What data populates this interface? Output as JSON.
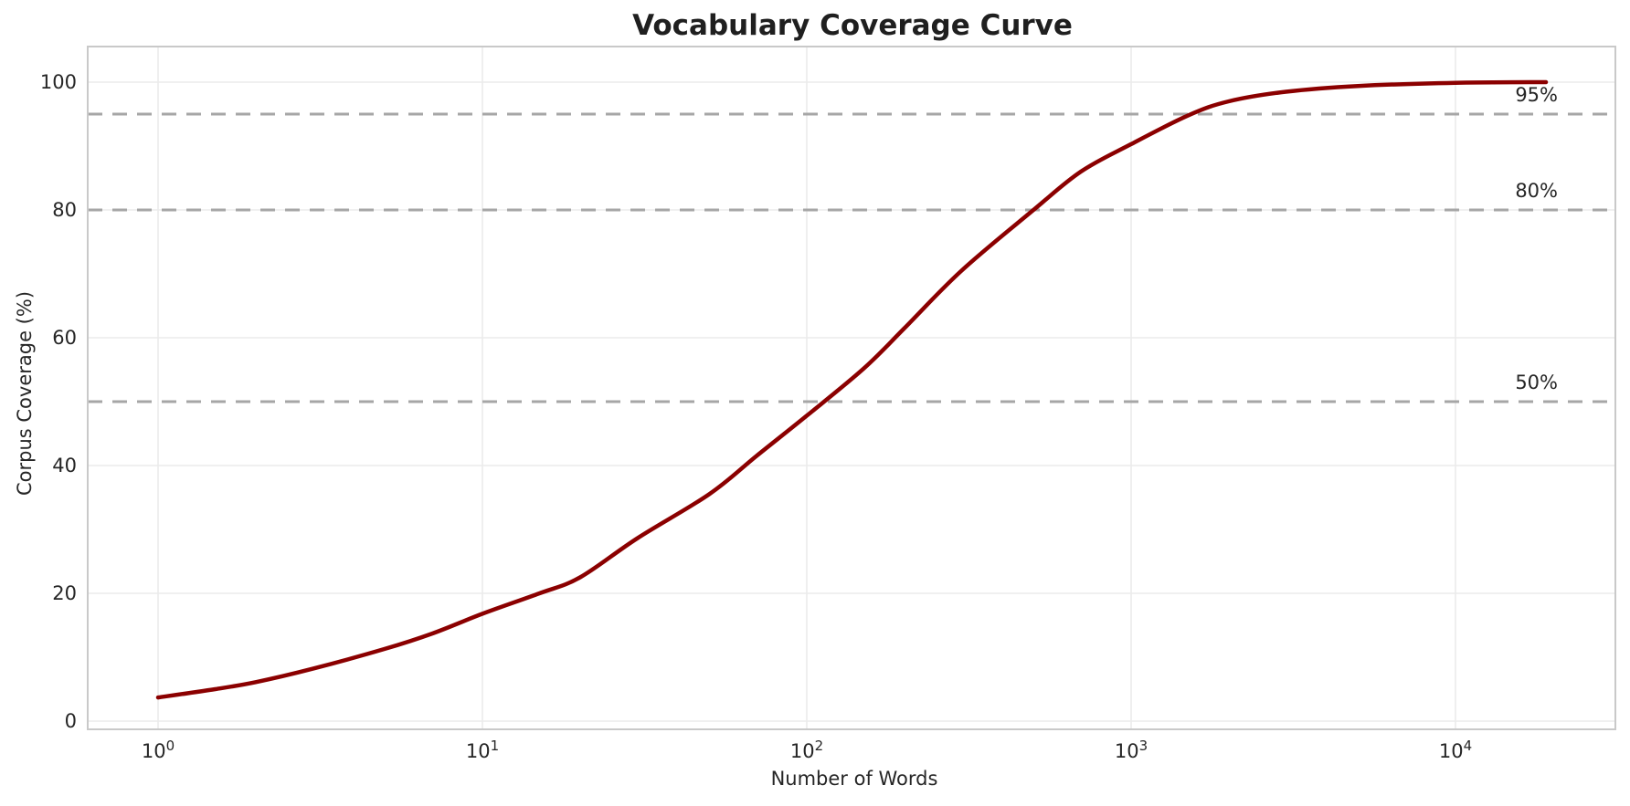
{
  "colors": {
    "line": "#8b0000",
    "threshold_line": "#a6a6a6",
    "grid": "#ebebeb",
    "spine": "#c9c9c9",
    "text": "#262626",
    "title_text": "#1f1f1f",
    "background": "#ffffff"
  },
  "chart_data": {
    "type": "line",
    "title": "Vocabulary Coverage Curve",
    "xlabel": "Number of Words",
    "ylabel": "Corpus Coverage (%)",
    "xscale": "log",
    "xlim": [
      0.61,
      31000
    ],
    "ylim": [
      -1.7,
      105.6
    ],
    "grid": true,
    "legend": "none",
    "x_ticks": [
      {
        "base": "10",
        "exp": "0",
        "value": 1
      },
      {
        "base": "10",
        "exp": "1",
        "value": 10
      },
      {
        "base": "10",
        "exp": "2",
        "value": 100
      },
      {
        "base": "10",
        "exp": "3",
        "value": 1000
      },
      {
        "base": "10",
        "exp": "4",
        "value": 10000
      }
    ],
    "y_ticks": [
      {
        "label": "0",
        "value": 0
      },
      {
        "label": "20",
        "value": 20
      },
      {
        "label": "40",
        "value": 40
      },
      {
        "label": "60",
        "value": 60
      },
      {
        "label": "80",
        "value": 80
      },
      {
        "label": "100",
        "value": 100
      }
    ],
    "series": [
      {
        "name": "vocabulary-coverage",
        "color": "#8b0000",
        "x": [
          1,
          1.5,
          2,
          3,
          5,
          7,
          10,
          15,
          20,
          30,
          50,
          70,
          100,
          150,
          200,
          300,
          500,
          700,
          1000,
          1500,
          2000,
          3000,
          5000,
          10000,
          19000
        ],
        "y": [
          3.7,
          5.0,
          6.1,
          8.2,
          11.3,
          13.7,
          16.8,
          20.0,
          22.5,
          28.6,
          35.5,
          41.5,
          47.8,
          55.2,
          61.5,
          70.5,
          80.0,
          86.0,
          90.3,
          94.8,
          97.0,
          98.5,
          99.4,
          99.9,
          100.0
        ]
      }
    ],
    "reference_lines": [
      {
        "y": 95,
        "label": "95%"
      },
      {
        "y": 80,
        "label": "80%"
      },
      {
        "y": 50,
        "label": "50%"
      }
    ]
  }
}
